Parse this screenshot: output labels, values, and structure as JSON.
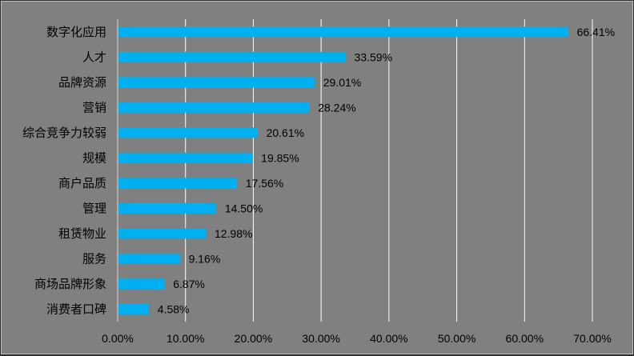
{
  "chart_data": {
    "type": "bar",
    "orientation": "horizontal",
    "categories": [
      "数字化应用",
      "人才",
      "品牌资源",
      "营销",
      "综合竞争力较弱",
      "规模",
      "商户品质",
      "管理",
      "租赁物业",
      "服务",
      "商场品牌形象",
      "消费者口碑"
    ],
    "values": [
      66.41,
      33.59,
      29.01,
      28.24,
      20.61,
      19.85,
      17.56,
      14.5,
      12.98,
      9.16,
      6.87,
      4.58
    ],
    "value_labels": [
      "66.41%",
      "33.59%",
      "29.01%",
      "28.24%",
      "20.61%",
      "19.85%",
      "17.56%",
      "14.50%",
      "12.98%",
      "9.16%",
      "6.87%",
      "4.58%"
    ],
    "xlim": [
      0,
      70
    ],
    "ticks": [
      0,
      10,
      20,
      30,
      40,
      50,
      60,
      70
    ],
    "tick_labels": [
      "0.00%",
      "10.00%",
      "20.00%",
      "30.00%",
      "40.00%",
      "50.00%",
      "60.00%",
      "70.00%"
    ],
    "grid": true,
    "title": "",
    "xlabel": "",
    "ylabel": "",
    "colors": {
      "bar": "#00b0f0",
      "background": "#808080",
      "grid": "#ffffff",
      "axis": "#d9d9d9"
    }
  }
}
